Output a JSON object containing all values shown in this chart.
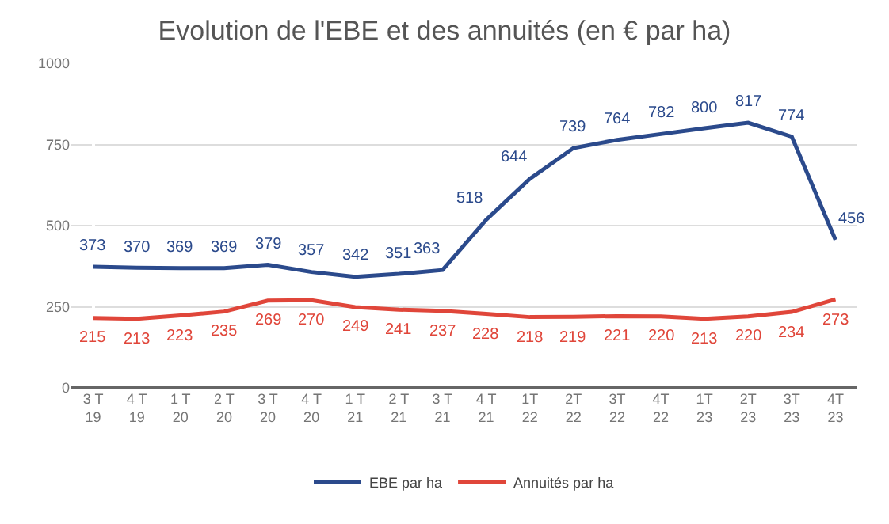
{
  "chart_data": {
    "type": "line",
    "title": "Evolution de l'EBE et des annuités (en € par ha)",
    "categories": [
      "3 T\n19",
      "4 T\n19",
      "1 T\n20",
      "2 T\n20",
      "3 T\n20",
      "4 T\n20",
      "1 T\n21",
      "2 T\n21",
      "3 T\n21",
      "4 T\n21",
      "1T\n22",
      "2T\n22",
      "3T\n22",
      "4T\n22",
      "1T\n23",
      "2T\n23",
      "3T\n23",
      "4T\n23"
    ],
    "series": [
      {
        "name": "EBE par ha",
        "color": "#2b4a8c",
        "values": [
          373,
          370,
          369,
          369,
          379,
          357,
          342,
          351,
          363,
          518,
          644,
          739,
          764,
          782,
          800,
          817,
          774,
          456
        ]
      },
      {
        "name": "Annuités par ha",
        "color": "#e0463a",
        "values": [
          215,
          213,
          223,
          235,
          269,
          270,
          249,
          241,
          237,
          228,
          218,
          219,
          221,
          220,
          213,
          220,
          234,
          273
        ]
      }
    ],
    "ylim": [
      0,
      1000
    ],
    "yticks": [
      0,
      250,
      500,
      750,
      1000
    ],
    "grid": "y",
    "legend": "bottom",
    "data_labels": true,
    "marker": "none",
    "line_style": "solid"
  }
}
